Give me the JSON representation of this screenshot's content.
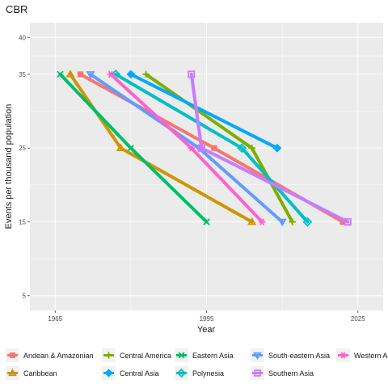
{
  "chart_data": {
    "type": "line",
    "title": "CBR",
    "xlabel": "Year",
    "ylabel": "Events per thousand population",
    "xlim": [
      1960,
      2030
    ],
    "ylim": [
      3,
      42
    ],
    "x_ticks": [
      1965,
      1995,
      2025
    ],
    "x_tick_labels": [
      "1965",
      "1995",
      "2025"
    ],
    "y_ticks": [
      5,
      15,
      25,
      35,
      40
    ],
    "y_tick_labels": [
      "5",
      "15",
      "25",
      "35",
      "40"
    ],
    "grid": true,
    "legend_position": "bottom",
    "series": [
      {
        "name": "Andean & Amazonian",
        "color": "#F8766D",
        "marker": "square",
        "points": [
          [
            1970,
            35
          ],
          [
            1996.5,
            25
          ],
          [
            2022,
            15
          ]
        ]
      },
      {
        "name": "Caribbean",
        "color": "#CD9600",
        "marker": "triangle",
        "points": [
          [
            1968,
            35
          ],
          [
            1978,
            25
          ],
          [
            2004,
            15
          ]
        ]
      },
      {
        "name": "Central America",
        "color": "#7CAE00",
        "marker": "plus",
        "points": [
          [
            1983,
            35
          ],
          [
            2004,
            25
          ],
          [
            2012,
            15
          ]
        ]
      },
      {
        "name": "Central Asia",
        "color": "#00A9FF",
        "marker": "diamond",
        "points": [
          [
            1980,
            35
          ],
          [
            2009,
            25
          ]
        ]
      },
      {
        "name": "Eastern Asia",
        "color": "#00BE67",
        "marker": "x",
        "points": [
          [
            1966,
            35
          ],
          [
            1980,
            25
          ],
          [
            1995,
            15
          ]
        ]
      },
      {
        "name": "Polynesia",
        "color": "#00BFC4",
        "marker": "diamond-open",
        "points": [
          [
            1977,
            35
          ],
          [
            2002,
            25
          ],
          [
            2015,
            15
          ]
        ]
      },
      {
        "name": "South-eastern Asia",
        "color": "#619CFF",
        "marker": "triangle-down",
        "points": [
          [
            1972,
            35
          ],
          [
            1993.5,
            25
          ],
          [
            2010,
            15
          ]
        ]
      },
      {
        "name": "Southern Asia",
        "color": "#C77CFF",
        "marker": "square-open",
        "points": [
          [
            1992,
            35
          ],
          [
            1994,
            25
          ],
          [
            2023,
            15
          ]
        ]
      },
      {
        "name": "Western Asia",
        "color": "#FF61CC",
        "marker": "asterisk",
        "points": [
          [
            1976,
            35
          ],
          [
            1992,
            25
          ],
          [
            2006,
            15
          ]
        ]
      }
    ]
  }
}
